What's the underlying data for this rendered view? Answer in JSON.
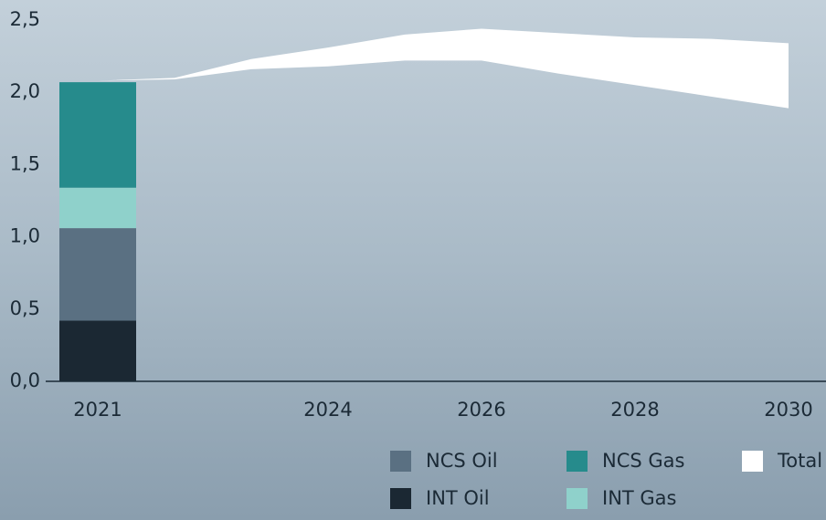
{
  "chart_data": {
    "type": "bar",
    "xlim": [
      2020.5,
      2030.5
    ],
    "xticks": [
      2021,
      2024,
      2026,
      2028,
      2030
    ],
    "ylim": [
      0,
      2.5
    ],
    "yticks": [
      {
        "value": 0,
        "label": "0,0"
      },
      {
        "value": 0.5,
        "label": "0,5"
      },
      {
        "value": 1,
        "label": "1,0"
      },
      {
        "value": 1.5,
        "label": "1,5"
      },
      {
        "value": 2,
        "label": "2,0"
      },
      {
        "value": 2.5,
        "label": "2,5"
      }
    ],
    "x": [
      2021
    ],
    "series": [
      {
        "name": "INT Oil",
        "color": "#1b2833",
        "values": [
          0.42
        ]
      },
      {
        "name": "NCS Oil",
        "color": "#5a7082",
        "values": [
          0.64
        ]
      },
      {
        "name": "INT Gas",
        "color": "#8fd1cb",
        "values": [
          0.28
        ]
      },
      {
        "name": "NCS Gas",
        "color": "#268b8c",
        "values": [
          0.73
        ]
      }
    ],
    "range": {
      "name": "Total",
      "color": "#ffffff",
      "x": [
        2021,
        2022,
        2023,
        2024,
        2025,
        2026,
        2027,
        2028,
        2029,
        2030
      ],
      "high": [
        2.08,
        2.1,
        2.23,
        2.31,
        2.4,
        2.44,
        2.41,
        2.38,
        2.37,
        2.34
      ],
      "low": [
        2.08,
        2.09,
        2.16,
        2.18,
        2.22,
        2.22,
        2.13,
        2.05,
        1.97,
        1.89
      ]
    }
  }
}
